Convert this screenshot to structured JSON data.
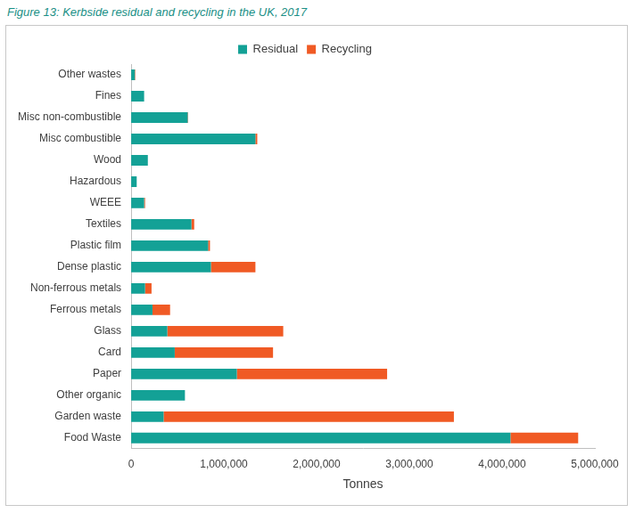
{
  "chart_data": {
    "type": "bar",
    "title": "Figure 13: Kerbside residual and recycling in the UK, 2017",
    "x_label": "Tonnes",
    "orientation": "horizontal",
    "stacked": true,
    "grid": false,
    "legend": "top",
    "categories": [
      "Other wastes",
      "Fines",
      "Misc non-combustible",
      "Misc combustible",
      "Wood",
      "Hazardous",
      "WEEE",
      "Textiles",
      "Plastic film",
      "Dense plastic",
      "Non-ferrous metals",
      "Ferrous metals",
      "Glass",
      "Card",
      "Paper",
      "Other organic",
      "Garden waste",
      "Food Waste"
    ],
    "series": [
      {
        "name": "Residual",
        "color": "#13a196",
        "values": [
          40000,
          140000,
          610000,
          1340000,
          180000,
          60000,
          140000,
          650000,
          830000,
          860000,
          150000,
          230000,
          390000,
          470000,
          1140000,
          580000,
          350000,
          4090000
        ]
      },
      {
        "name": "Recycling",
        "color": "#f05a24",
        "values": [
          5000,
          0,
          5000,
          20000,
          0,
          0,
          10000,
          30000,
          20000,
          480000,
          70000,
          190000,
          1250000,
          1060000,
          1620000,
          0,
          3130000,
          730000
        ]
      }
    ],
    "xlim": [
      0,
      5000000
    ],
    "xticks": [
      0,
      {
        "value": 1000000,
        "label": "1,000,000"
      },
      {
        "value": 2000000,
        "label": "2,000,000"
      },
      {
        "value": 3000000,
        "label": "3,000,000"
      },
      {
        "value": 4000000,
        "label": "4,000,000"
      },
      {
        "value": 5000000,
        "label": "5,000,000"
      }
    ]
  }
}
